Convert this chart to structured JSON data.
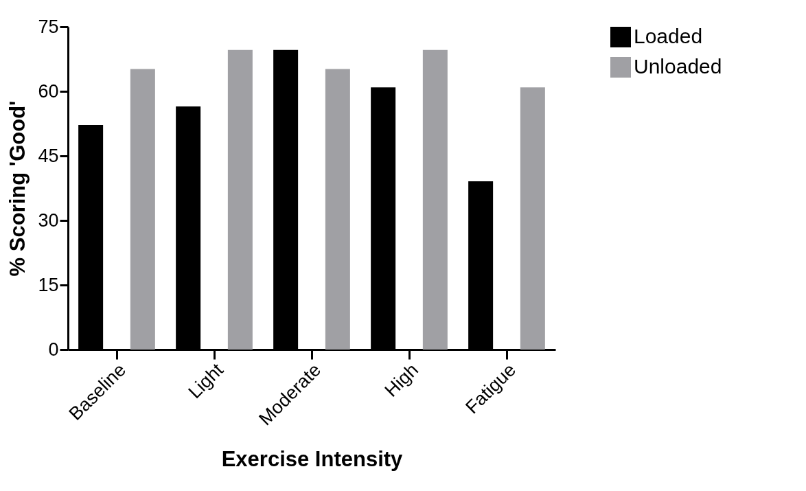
{
  "chart_data": {
    "type": "bar",
    "xlabel": "Exercise Intensity",
    "ylabel": "% Scoring 'Good'",
    "categories": [
      "Baseline",
      "Light",
      "Moderate",
      "High",
      "Fatigue"
    ],
    "series": [
      {
        "name": "Loaded",
        "color": "#000000",
        "values": [
          52.2,
          56.5,
          69.6,
          60.9,
          39.1
        ]
      },
      {
        "name": "Unloaded",
        "color": "#a0a0a4",
        "values": [
          65.2,
          69.6,
          65.2,
          69.6,
          60.9
        ]
      }
    ],
    "ylim": [
      0,
      75
    ],
    "yticks": [
      0,
      15,
      30,
      45,
      60,
      75
    ],
    "grid": false,
    "legend": "top right"
  }
}
